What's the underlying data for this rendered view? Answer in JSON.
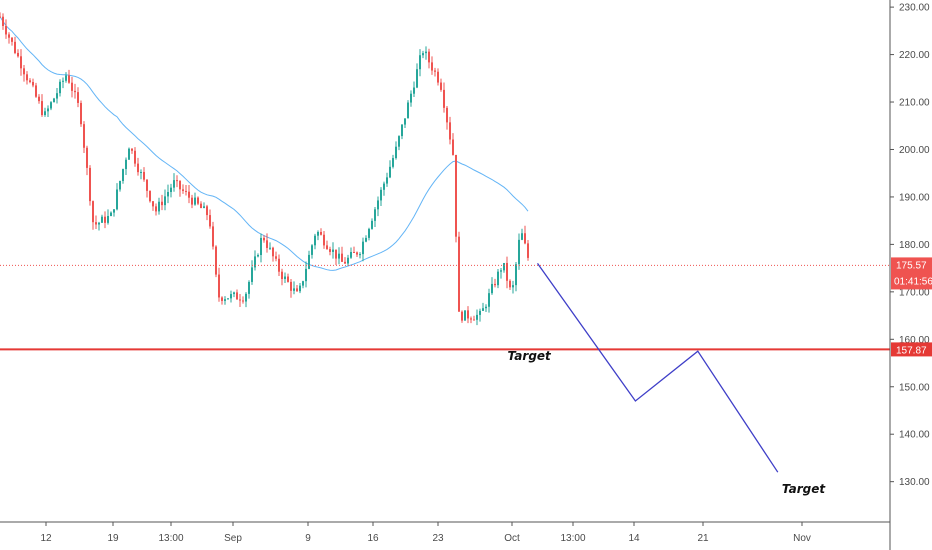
{
  "chart_data": {
    "type": "candlestick",
    "title": "",
    "xlabel": "",
    "ylabel": "",
    "ylim": [
      121.5,
      231.5
    ],
    "grid": false,
    "legend": "none",
    "y_ticks": [
      130,
      140,
      150,
      160,
      170,
      180,
      190,
      200,
      210,
      220,
      230
    ],
    "y_tick_labels": [
      "130.00",
      "140.00",
      "150.00",
      "160.00",
      "170.00",
      "180.00",
      "190.00",
      "200.00",
      "210.00",
      "220.00",
      "230.00"
    ],
    "x_tick_labels": [
      "12",
      "19",
      "13:00",
      "Sep",
      "9",
      "16",
      "23",
      "Oct",
      "13:00",
      "14",
      "21",
      "Nov"
    ],
    "last_price": {
      "value": 175.57,
      "label": "175.57",
      "countdown": "01:41:56",
      "color": "#ef5350"
    },
    "support_level": {
      "value": 157.87,
      "label": "157.87",
      "color": "#e53935"
    },
    "moving_average": {
      "color": "#64b5f6"
    },
    "candle_colors": {
      "up": "#26a69a",
      "down": "#ef5350"
    },
    "projection": {
      "color": "#3f3fc8",
      "points": [
        [
          176,
          0.0
        ],
        [
          147,
          0.11
        ],
        [
          157.5,
          0.18
        ],
        [
          132,
          0.27
        ]
      ]
    },
    "annotations": [
      {
        "text": "Target",
        "price": 156.5
      },
      {
        "text": "Target",
        "price": 128.5
      }
    ],
    "price_segments": [
      {
        "from": 0.0,
        "to": 0.05,
        "p0": 228,
        "p1": 207
      },
      {
        "from": 0.05,
        "to": 0.075,
        "p0": 207,
        "p1": 216
      },
      {
        "from": 0.075,
        "to": 0.09,
        "p0": 216,
        "p1": 208
      },
      {
        "from": 0.09,
        "to": 0.105,
        "p0": 208,
        "p1": 184
      },
      {
        "from": 0.105,
        "to": 0.125,
        "p0": 184,
        "p1": 186
      },
      {
        "from": 0.125,
        "to": 0.145,
        "p0": 186,
        "p1": 201
      },
      {
        "from": 0.145,
        "to": 0.175,
        "p0": 201,
        "p1": 187
      },
      {
        "from": 0.175,
        "to": 0.195,
        "p0": 187,
        "p1": 193
      },
      {
        "from": 0.195,
        "to": 0.235,
        "p0": 193,
        "p1": 186
      },
      {
        "from": 0.235,
        "to": 0.245,
        "p0": 186,
        "p1": 169
      },
      {
        "from": 0.245,
        "to": 0.275,
        "p0": 169,
        "p1": 169
      },
      {
        "from": 0.275,
        "to": 0.295,
        "p0": 169,
        "p1": 182
      },
      {
        "from": 0.295,
        "to": 0.315,
        "p0": 182,
        "p1": 174
      },
      {
        "from": 0.315,
        "to": 0.335,
        "p0": 174,
        "p1": 169
      },
      {
        "from": 0.335,
        "to": 0.355,
        "p0": 169,
        "p1": 183
      },
      {
        "from": 0.355,
        "to": 0.385,
        "p0": 183,
        "p1": 176
      },
      {
        "from": 0.385,
        "to": 0.405,
        "p0": 176,
        "p1": 179
      },
      {
        "from": 0.405,
        "to": 0.445,
        "p0": 179,
        "p1": 200
      },
      {
        "from": 0.445,
        "to": 0.475,
        "p0": 200,
        "p1": 221
      },
      {
        "from": 0.475,
        "to": 0.495,
        "p0": 221,
        "p1": 214
      },
      {
        "from": 0.495,
        "to": 0.51,
        "p0": 214,
        "p1": 198
      },
      {
        "from": 0.51,
        "to": 0.515,
        "p0": 198,
        "p1": 165
      },
      {
        "from": 0.515,
        "to": 0.54,
        "p0": 165,
        "p1": 165
      },
      {
        "from": 0.54,
        "to": 0.565,
        "p0": 165,
        "p1": 176
      },
      {
        "from": 0.565,
        "to": 0.575,
        "p0": 176,
        "p1": 169
      },
      {
        "from": 0.575,
        "to": 0.585,
        "p0": 169,
        "p1": 183
      },
      {
        "from": 0.585,
        "to": 0.595,
        "p0": 183,
        "p1": 176
      }
    ]
  }
}
